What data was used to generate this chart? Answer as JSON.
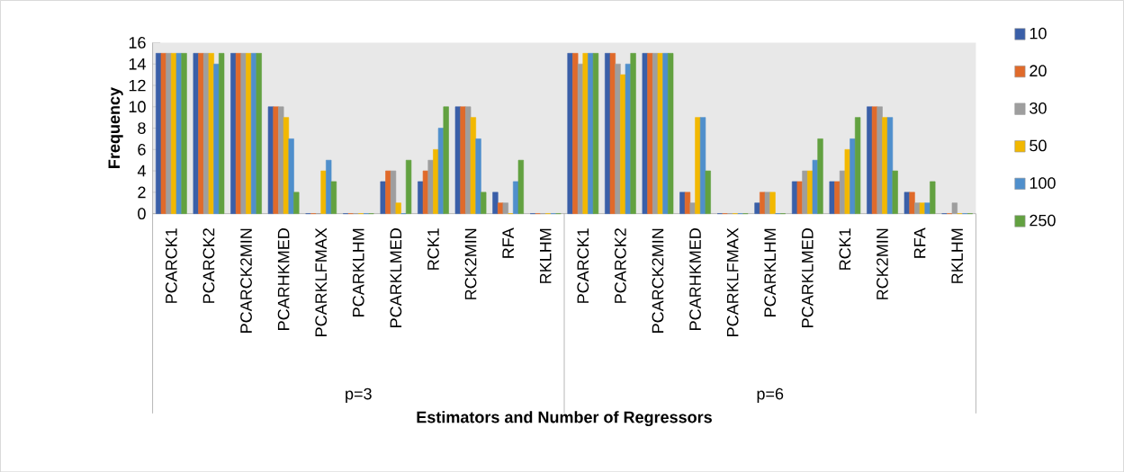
{
  "chart_data": {
    "type": "bar",
    "xlabel": "Estimators and Number of Regressors",
    "ylabel": "Frequency",
    "categories": [
      "PCARCK1",
      "PCARCK2",
      "PCARCK2MIN",
      "PCARHKMED",
      "PCARKLFMAX",
      "PCARKLHM",
      "PCARKLMED",
      "RCK1",
      "RCK2MIN",
      "RFA",
      "RKLHM",
      "PCARCK1",
      "PCARCK2",
      "PCARCK2MIN",
      "PCARHKMED",
      "PCARKLFMAX",
      "PCARKLHM",
      "PCARKLMED",
      "RCK1",
      "RCK2MIN",
      "RFA",
      "RKLHM"
    ],
    "series": [
      {
        "name": "10",
        "color": "#3a5fa8",
        "values": [
          15,
          15,
          15,
          10,
          0,
          0,
          3,
          3,
          10,
          2,
          0,
          15,
          15,
          15,
          2,
          0,
          1,
          3,
          3,
          10,
          2,
          0
        ]
      },
      {
        "name": "20",
        "color": "#e06a2a",
        "values": [
          15,
          15,
          15,
          10,
          0,
          0,
          4,
          4,
          10,
          1,
          0,
          15,
          15,
          15,
          2,
          0,
          2,
          3,
          3,
          10,
          2,
          0
        ]
      },
      {
        "name": "30",
        "color": "#9e9e9e",
        "values": [
          15,
          15,
          15,
          10,
          0,
          0,
          4,
          5,
          10,
          1,
          0,
          14,
          14,
          15,
          1,
          0,
          2,
          4,
          4,
          10,
          1,
          1
        ]
      },
      {
        "name": "50",
        "color": "#f2b800",
        "values": [
          15,
          15,
          15,
          9,
          4,
          0,
          1,
          6,
          9,
          0,
          0,
          15,
          13,
          15,
          9,
          0,
          2,
          4,
          6,
          9,
          1,
          0
        ]
      },
      {
        "name": "100",
        "color": "#4f8fcc",
        "values": [
          15,
          14,
          15,
          7,
          5,
          0,
          0,
          8,
          7,
          3,
          0,
          15,
          14,
          15,
          9,
          0,
          0,
          5,
          7,
          9,
          1,
          0
        ]
      },
      {
        "name": "250",
        "color": "#62a140",
        "values": [
          15,
          15,
          15,
          2,
          3,
          0,
          5,
          10,
          2,
          5,
          0,
          15,
          15,
          15,
          4,
          0,
          0,
          7,
          9,
          4,
          3,
          0
        ]
      }
    ],
    "ylim": [
      0,
      16
    ],
    "yticks": [
      0,
      2,
      4,
      6,
      8,
      10,
      12,
      14,
      16
    ],
    "grid": false,
    "legend": "right",
    "annotations": [
      "p=3",
      "p=6"
    ]
  }
}
